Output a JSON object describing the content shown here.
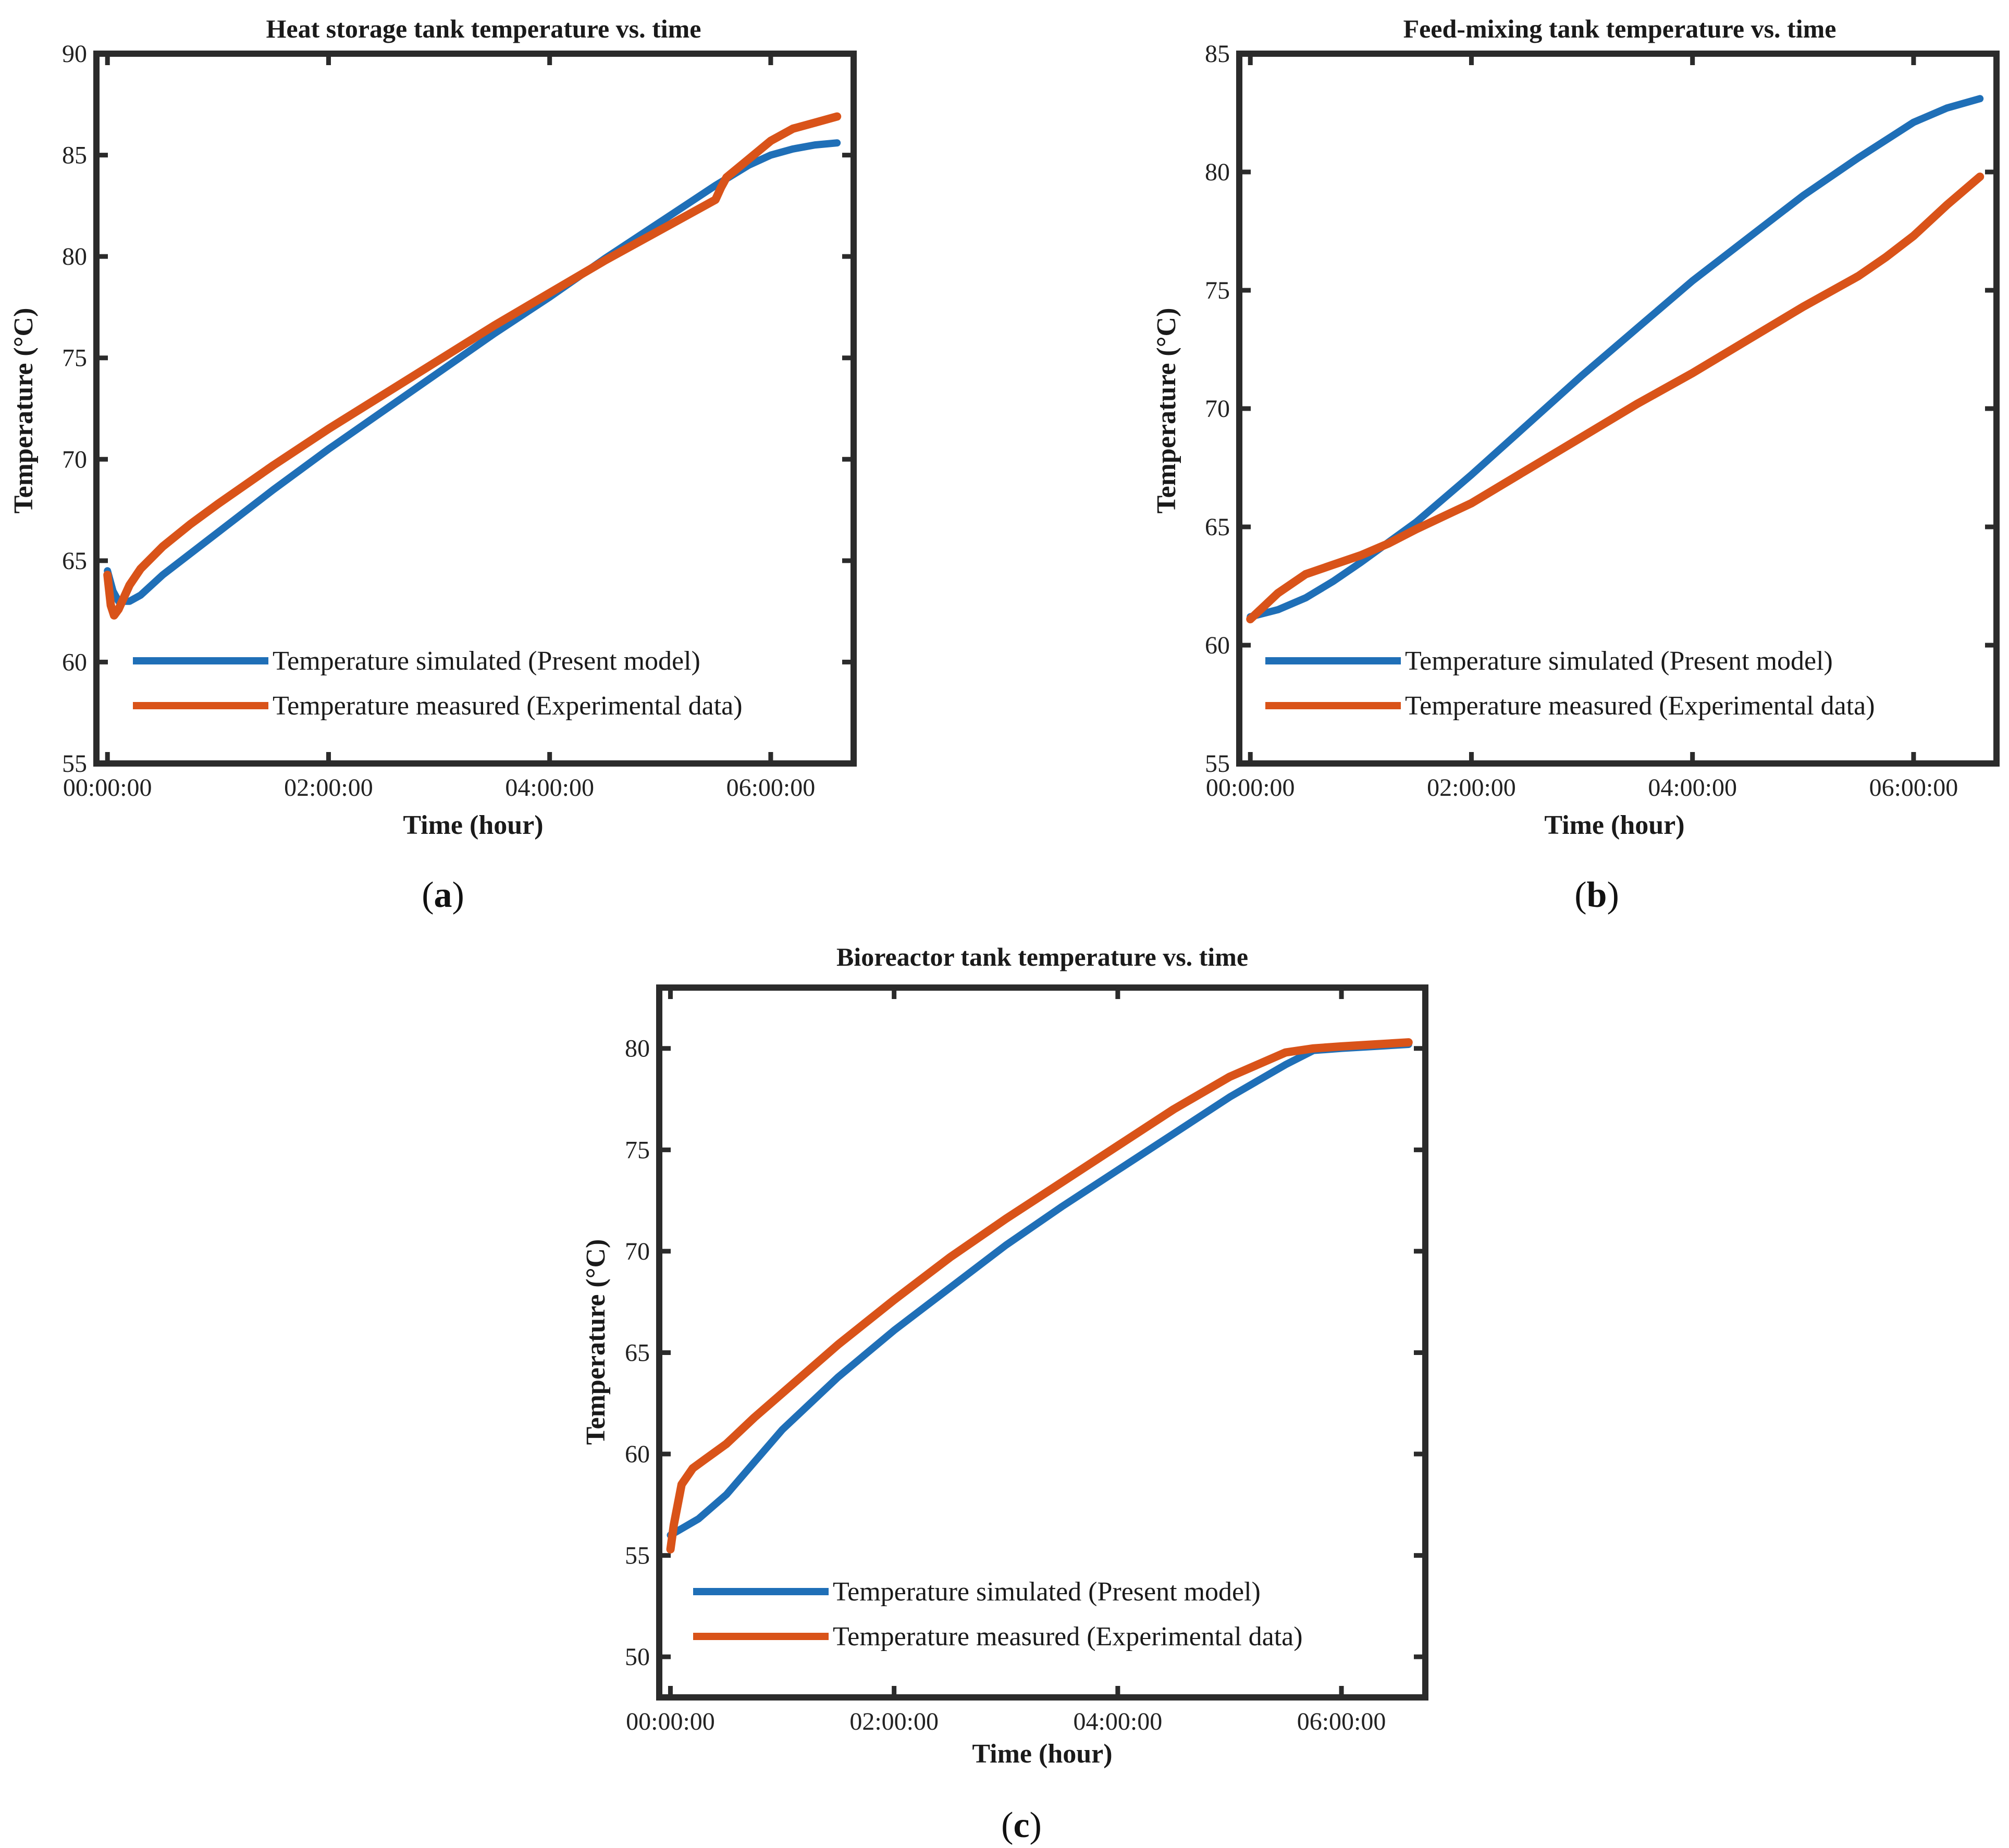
{
  "colors": {
    "simulated": "#1f6fb7",
    "measured": "#d95319",
    "frame": "#2b2b2b",
    "text": "#1a1a1a"
  },
  "legend": {
    "simulated": "Temperature simulated (Present model)",
    "measured": "Temperature measured (Experimental data)"
  },
  "chart_data": [
    {
      "type": "line",
      "panel": "a",
      "caption": "(a)",
      "title": "Heat storage tank temperature vs. time",
      "xlabel": "Time (hour)",
      "ylabel": "Temperature (°C)",
      "xlim": [
        -0.1,
        6.75
      ],
      "ylim": [
        55,
        90
      ],
      "xticks": [
        0,
        2,
        4,
        6
      ],
      "xtick_labels": [
        "00:00:00",
        "02:00:00",
        "04:00:00",
        "06:00:00"
      ],
      "yticks": [
        55,
        60,
        65,
        70,
        75,
        80,
        85,
        90
      ],
      "ytick_labels": [
        "55",
        "60",
        "65",
        "70",
        "75",
        "80",
        "85",
        "90"
      ],
      "legend_position": "lower-left",
      "series": [
        {
          "name": "Temperature simulated (Present model)",
          "x": [
            0,
            0.05,
            0.1,
            0.2,
            0.3,
            0.5,
            1,
            1.5,
            2,
            2.5,
            3,
            3.5,
            4,
            4.5,
            5,
            5.5,
            5.8,
            6,
            6.2,
            6.4,
            6.6
          ],
          "y": [
            64.5,
            63.5,
            63.0,
            63.0,
            63.3,
            64.3,
            66.4,
            68.5,
            70.5,
            72.4,
            74.3,
            76.2,
            78.0,
            79.9,
            81.7,
            83.5,
            84.5,
            85.0,
            85.3,
            85.5,
            85.6
          ]
        },
        {
          "name": "Temperature measured (Experimental data)",
          "x": [
            0,
            0.03,
            0.06,
            0.1,
            0.2,
            0.3,
            0.5,
            0.75,
            1,
            1.5,
            2,
            2.5,
            3,
            3.5,
            4,
            4.5,
            5,
            5.5,
            5.55,
            5.6,
            5.8,
            6,
            6.2,
            6.4,
            6.6
          ],
          "y": [
            64.3,
            62.8,
            62.3,
            62.6,
            63.8,
            64.6,
            65.7,
            66.8,
            67.8,
            69.7,
            71.5,
            73.2,
            74.9,
            76.6,
            78.2,
            79.8,
            81.3,
            82.8,
            83.4,
            83.9,
            84.8,
            85.7,
            86.3,
            86.6,
            86.9
          ]
        }
      ]
    },
    {
      "type": "line",
      "panel": "b",
      "caption": "(b)",
      "title": "Feed-mixing tank temperature vs. time",
      "xlabel": "Time (hour)",
      "ylabel": "Temperature (°C)",
      "xlim": [
        -0.1,
        6.75
      ],
      "ylim": [
        55,
        85
      ],
      "xticks": [
        0,
        2,
        4,
        6
      ],
      "xtick_labels": [
        "00:00:00",
        "02:00:00",
        "04:00:00",
        "06:00:00"
      ],
      "yticks": [
        55,
        60,
        65,
        70,
        75,
        80,
        85
      ],
      "ytick_labels": [
        "55",
        "60",
        "65",
        "70",
        "75",
        "80",
        "85"
      ],
      "legend_position": "lower-left",
      "series": [
        {
          "name": "Temperature simulated (Present model)",
          "x": [
            0,
            0.25,
            0.5,
            0.75,
            1,
            1.5,
            2,
            2.5,
            3,
            3.5,
            4,
            4.5,
            5,
            5.5,
            6,
            6.3,
            6.6
          ],
          "y": [
            61.2,
            61.5,
            62.0,
            62.7,
            63.5,
            65.2,
            67.2,
            69.3,
            71.4,
            73.4,
            75.4,
            77.2,
            79.0,
            80.6,
            82.1,
            82.7,
            83.1
          ]
        },
        {
          "name": "Temperature measured (Experimental data)",
          "x": [
            0,
            0.25,
            0.5,
            0.75,
            1,
            1.25,
            1.5,
            2,
            2.5,
            3,
            3.5,
            4,
            4.5,
            5,
            5.5,
            5.75,
            6,
            6.3,
            6.6
          ],
          "y": [
            61.1,
            62.2,
            63.0,
            63.4,
            63.8,
            64.3,
            64.9,
            66.0,
            67.4,
            68.8,
            70.2,
            71.5,
            72.9,
            74.3,
            75.6,
            76.4,
            77.3,
            78.6,
            79.8
          ]
        }
      ]
    },
    {
      "type": "line",
      "panel": "c",
      "caption": "(c)",
      "title": "Bioreactor tank temperature vs. time",
      "xlabel": "Time (hour)",
      "ylabel": "Temperature (°C)",
      "xlim": [
        -0.1,
        6.75
      ],
      "ylim": [
        48,
        83
      ],
      "xticks": [
        0,
        2,
        4,
        6
      ],
      "xtick_labels": [
        "00:00:00",
        "02:00:00",
        "04:00:00",
        "06:00:00"
      ],
      "yticks": [
        50,
        55,
        60,
        65,
        70,
        75,
        80
      ],
      "ytick_labels": [
        "50",
        "55",
        "60",
        "65",
        "70",
        "75",
        "80"
      ],
      "legend_position": "lower-left",
      "series": [
        {
          "name": "Temperature simulated (Present model)",
          "x": [
            0,
            0.25,
            0.5,
            0.75,
            1,
            1.5,
            2,
            2.5,
            3,
            3.5,
            4,
            4.5,
            5,
            5.5,
            5.75,
            6,
            6.3,
            6.6
          ],
          "y": [
            56.0,
            56.8,
            58.0,
            59.6,
            61.2,
            63.8,
            66.1,
            68.2,
            70.3,
            72.2,
            74.0,
            75.8,
            77.6,
            79.2,
            79.9,
            80.0,
            80.1,
            80.2
          ]
        },
        {
          "name": "Temperature measured (Experimental data)",
          "x": [
            0,
            0.03,
            0.1,
            0.2,
            0.3,
            0.5,
            0.75,
            1,
            1.5,
            2,
            2.5,
            3,
            3.5,
            4,
            4.5,
            5,
            5.5,
            5.75,
            6,
            6.3,
            6.6
          ],
          "y": [
            55.3,
            56.5,
            58.5,
            59.3,
            59.7,
            60.5,
            61.8,
            63.0,
            65.4,
            67.6,
            69.7,
            71.6,
            73.4,
            75.2,
            77.0,
            78.6,
            79.8,
            80.0,
            80.1,
            80.2,
            80.3
          ]
        }
      ]
    }
  ]
}
